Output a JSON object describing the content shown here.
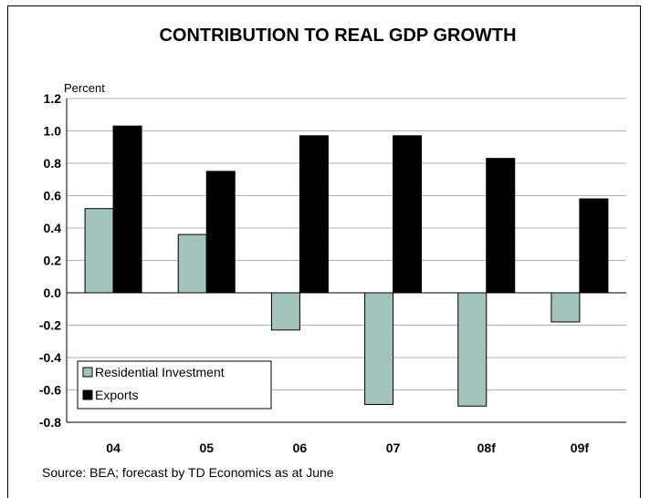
{
  "chart_data": {
    "type": "bar",
    "title": "CONTRIBUTION TO REAL GDP GROWTH",
    "ylabel": "Percent",
    "xlabel": "",
    "categories": [
      "04",
      "05",
      "06",
      "07",
      "08f",
      "09f"
    ],
    "series": [
      {
        "name": "Residential Investment",
        "values": [
          0.52,
          0.36,
          -0.23,
          -0.69,
          -0.7,
          -0.18
        ],
        "color": "#a3c4bc"
      },
      {
        "name": "Exports",
        "values": [
          1.03,
          0.75,
          0.97,
          0.97,
          0.83,
          0.58
        ],
        "color": "#000000"
      }
    ],
    "ylim": [
      -0.8,
      1.2
    ],
    "yticks": [
      "1.2",
      "1.0",
      "0.8",
      "0.6",
      "0.4",
      "0.2",
      "0.0",
      "-0.2",
      "-0.4",
      "-0.6",
      "-0.8"
    ],
    "grid": true,
    "legend_position": "bottom-left",
    "source": "Source: BEA; forecast by TD Economics as at June"
  }
}
